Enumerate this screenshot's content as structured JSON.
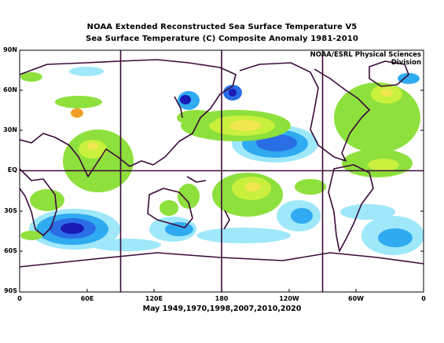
{
  "title_line1": "NOAA Extended Reconstructed Sea Surface Temperature V5",
  "title_line2": "Sea Surface Temperature (C) Composite Anomaly 1981-2010",
  "credit": "NOAA/ESRL Physical Sciences Division",
  "composite_years": "May 1949,1970,1998,2007,2010,2020",
  "y_axis_ticks": [
    "90N",
    "60N",
    "30N",
    "EQ",
    "30S",
    "60S",
    "90S"
  ],
  "x_axis_ticks": [
    "0",
    "60E",
    "120E",
    "180",
    "120W",
    "60W",
    "0"
  ],
  "colors": {
    "coastline": "#3a0a3a",
    "grid": "#3a0a3a",
    "strong_cool": "#1a1ab4",
    "cool": "#2a6ee6",
    "mild_cool": "#30aaf0",
    "slight_cool": "#9ee8fa",
    "slight_warm": "#8ee03c",
    "warm": "#c8f03c",
    "mild_warm": "#f0e650",
    "strong_warm": "#f0a028"
  }
}
